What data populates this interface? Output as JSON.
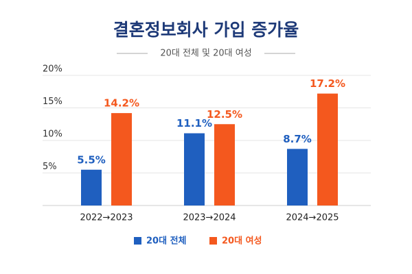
{
  "chart_data": {
    "type": "bar",
    "title": "결혼정보회사 가입 증가율",
    "subtitle": "20대 전체 및 20대 여성",
    "categories": [
      "2022→2023",
      "2023→2024",
      "2024→2025"
    ],
    "series": [
      {
        "name": "20대 전체",
        "color": "#1f5fbf",
        "values": [
          5.5,
          11.1,
          8.7
        ],
        "value_labels": [
          "5.5%",
          "11.1%",
          "8.7%"
        ]
      },
      {
        "name": "20대 여성",
        "color": "#f4581e",
        "values": [
          14.2,
          12.5,
          17.2
        ],
        "value_labels": [
          "14.2%",
          "12.5%",
          "17.2%"
        ]
      }
    ],
    "ylim": [
      0,
      20
    ],
    "yticks": [
      {
        "value": 5,
        "label": "5%"
      },
      {
        "value": 10,
        "label": "10%"
      },
      {
        "value": 15,
        "label": "15%"
      },
      {
        "value": 20,
        "label": "20%"
      }
    ],
    "grid": true,
    "legend": "bottom"
  }
}
